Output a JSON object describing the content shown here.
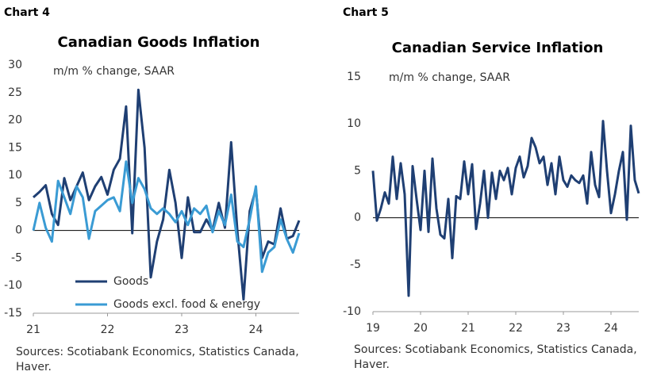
{
  "chart_data": [
    {
      "type": "line",
      "label": "Chart 4",
      "title": "Canadian Goods Inflation",
      "subtitle": "m/m % change, SAAR",
      "categories": [
        "21",
        null,
        null,
        null,
        null,
        null,
        null,
        null,
        null,
        null,
        null,
        null,
        "22",
        null,
        null,
        null,
        null,
        null,
        null,
        null,
        null,
        null,
        null,
        null,
        "23",
        null,
        null,
        null,
        null,
        null,
        null,
        null,
        null,
        null,
        null,
        null,
        "24",
        null,
        null,
        null,
        null,
        null,
        null,
        null
      ],
      "series": [
        {
          "name": "Goods",
          "color": "#1f3f73",
          "values": [
            6,
            7,
            8.2,
            3,
            1,
            9.5,
            5.5,
            8,
            10.5,
            5.5,
            8,
            9.7,
            6.5,
            11,
            13,
            22.5,
            -0.5,
            25.5,
            15,
            -8.5,
            -2,
            2,
            11,
            5,
            -5,
            6,
            -0.3,
            -0.3,
            2,
            0,
            5,
            0.5,
            16,
            0,
            -12.5,
            3.5,
            7.5,
            -5,
            -2,
            -2.5,
            4,
            -1.5,
            -1,
            1.8
          ]
        },
        {
          "name": "Goods excl. food & energy",
          "color": "#3a9bd4",
          "values": [
            0,
            5,
            0.5,
            -2,
            9,
            6,
            3,
            8,
            6,
            -1.5,
            3.5,
            4.5,
            5.5,
            6,
            3.5,
            12.5,
            5,
            9.5,
            7.5,
            4,
            3,
            4,
            3,
            1.5,
            3.5,
            1,
            4,
            3,
            4.5,
            -0.3,
            3.5,
            1,
            6.5,
            -2,
            -3,
            2,
            8,
            -7.5,
            -4,
            -3,
            2,
            -1.5,
            -4,
            -0.5
          ]
        }
      ],
      "ylim": [
        -15,
        30
      ],
      "yticks": [
        -15,
        -10,
        -5,
        0,
        5,
        10,
        15,
        20,
        25,
        30
      ],
      "legend": "lower left",
      "source": [
        "Sources: Scotiabank Economics, Statistics Canada,",
        "Haver."
      ]
    },
    {
      "type": "line",
      "label": "Chart 5",
      "title": "Canadian Service Inflation",
      "subtitle": "m/m % change, SAAR",
      "categories": [
        "19",
        null,
        null,
        null,
        null,
        null,
        null,
        null,
        null,
        null,
        null,
        null,
        "20",
        null,
        null,
        null,
        null,
        null,
        null,
        null,
        null,
        null,
        null,
        null,
        "21",
        null,
        null,
        null,
        null,
        null,
        null,
        null,
        null,
        null,
        null,
        null,
        "22",
        null,
        null,
        null,
        null,
        null,
        null,
        null,
        null,
        null,
        null,
        null,
        "23",
        null,
        null,
        null,
        null,
        null,
        null,
        null,
        null,
        null,
        null,
        null,
        "24",
        null,
        null,
        null,
        null,
        null,
        null,
        null
      ],
      "series": [
        {
          "color": "#1f3f73",
          "values": [
            5,
            -0.3,
            1,
            2.7,
            1.5,
            6.5,
            2,
            5.8,
            2.5,
            -8.3,
            5.5,
            2,
            -1.3,
            5,
            -1.5,
            6.3,
            1,
            -1.8,
            -2.2,
            2,
            -4.3,
            2.3,
            2,
            6,
            2.5,
            5.7,
            -1.2,
            1.5,
            5,
            0,
            4.8,
            2,
            5,
            4,
            5.3,
            2.5,
            5.3,
            6.5,
            4.3,
            5.5,
            8.5,
            7.5,
            5.8,
            6.5,
            3.5,
            5.8,
            2.5,
            6.5,
            4,
            3.3,
            4.5,
            4,
            3.7,
            4.5,
            1.5,
            7,
            3.5,
            2.2,
            10.3,
            5,
            0.5,
            2.5,
            5,
            7,
            -0.2,
            9.8,
            4,
            2.6
          ]
        }
      ],
      "ylim": [
        -10,
        15
      ],
      "yticks": [
        -10,
        -5,
        0,
        5,
        10,
        15
      ],
      "source": [
        "Sources: Scotiabank Economics, Statistics Canada,",
        "Haver."
      ]
    }
  ]
}
